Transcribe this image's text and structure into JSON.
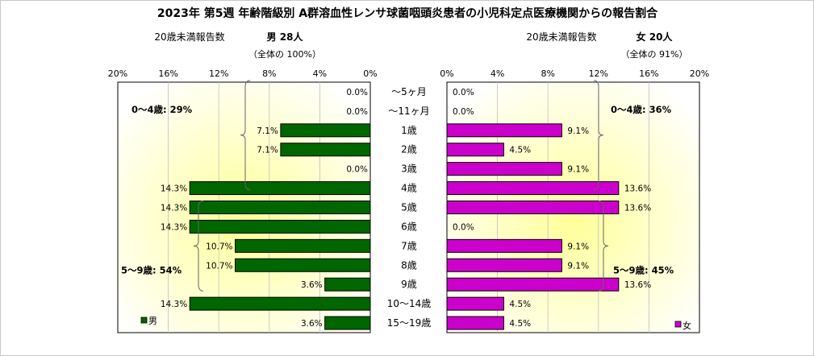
{
  "chart_data": {
    "type": "bar",
    "title": "2023年 第5週  年齢階級別 A群溶血性レンサ球菌咽頭炎患者の小児科定点医療機関からの報告割合",
    "categories": [
      "～5ヶ月",
      "～11ヶ月",
      "1歳",
      "2歳",
      "3歳",
      "4歳",
      "5歳",
      "6歳",
      "7歳",
      "8歳",
      "9歳",
      "10～14歳",
      "15～19歳"
    ],
    "xlim": [
      0,
      20
    ],
    "tick_labels": [
      "20%",
      "16%",
      "12%",
      "8%",
      "4%",
      "0%",
      "0%",
      "4%",
      "8%",
      "12%",
      "16%",
      "20%"
    ],
    "grid": true,
    "series": [
      {
        "name": "男",
        "side": "left",
        "color": "#006600",
        "header_label": "20歳未満報告数",
        "header_value": "男  28人",
        "header_sub": "（全体の  100%）",
        "values": [
          0.0,
          0.0,
          7.1,
          7.1,
          0.0,
          14.3,
          14.3,
          14.3,
          10.7,
          10.7,
          3.6,
          14.3,
          3.6
        ],
        "labels": [
          "0.0%",
          "0.0%",
          "7.1%",
          "7.1%",
          "0.0%",
          "14.3%",
          "14.3%",
          "14.3%",
          "10.7%",
          "10.7%",
          "3.6%",
          "14.3%",
          "3.6%"
        ],
        "legend": "男",
        "group_annotations": [
          "0～4歳: 29%",
          "5～9歳: 54%"
        ]
      },
      {
        "name": "女",
        "side": "right",
        "color": "#cc00cc",
        "header_label": "20歳未満報告数",
        "header_value": "女  20人",
        "header_sub": "（全体の  91%）",
        "values": [
          0.0,
          0.0,
          9.1,
          4.5,
          9.1,
          13.6,
          13.6,
          0.0,
          9.1,
          9.1,
          13.6,
          4.5,
          4.5
        ],
        "labels": [
          "0.0%",
          "0.0%",
          "9.1%",
          "4.5%",
          "9.1%",
          "13.6%",
          "13.6%",
          "0.0%",
          "9.1%",
          "9.1%",
          "13.6%",
          "4.5%",
          "4.5%"
        ],
        "legend": "女",
        "group_annotations": [
          "0～4歳: 36%",
          "5～9歳: 45%"
        ]
      }
    ]
  }
}
